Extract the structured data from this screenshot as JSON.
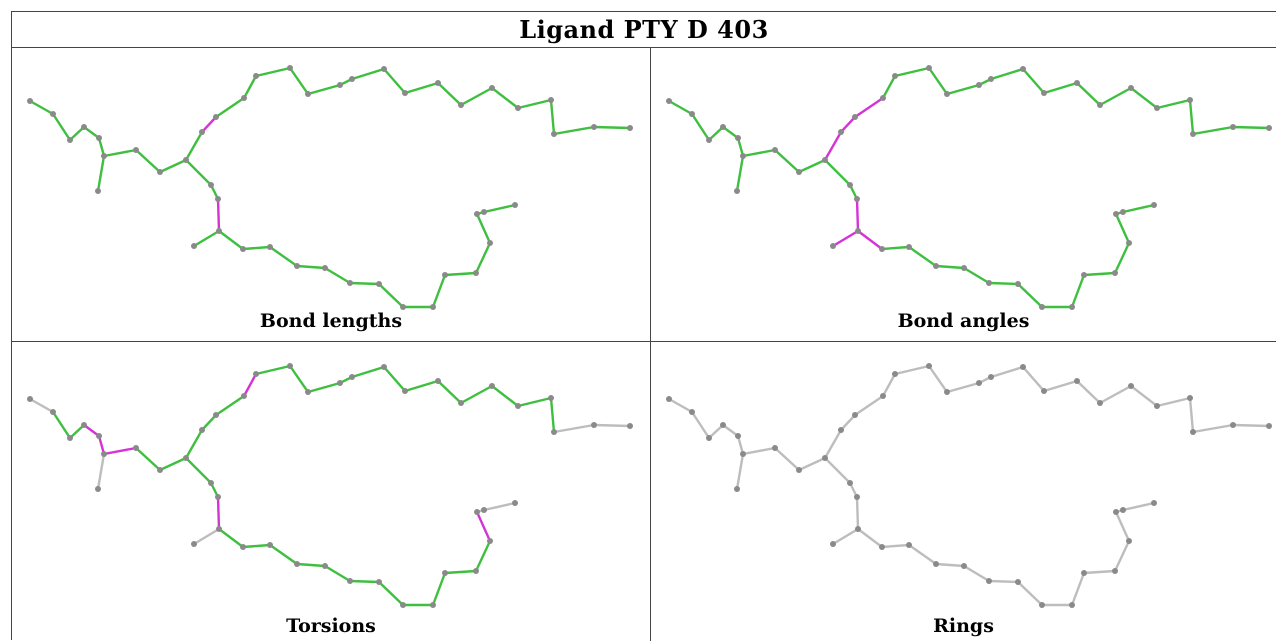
{
  "title": "Ligand PTY D 403",
  "panels": [
    {
      "id": "bond-lengths",
      "caption": "Bond lengths"
    },
    {
      "id": "bond-angles",
      "caption": "Bond angles"
    },
    {
      "id": "torsions",
      "caption": "Torsions"
    },
    {
      "id": "rings",
      "caption": "Rings"
    }
  ],
  "colors": {
    "ok": "#3fbf3f",
    "ok_dark": "#2c8a2c",
    "outlier": "#d633d6",
    "neutral": "#bdbdbd",
    "atom": "#8a8a8a"
  }
}
